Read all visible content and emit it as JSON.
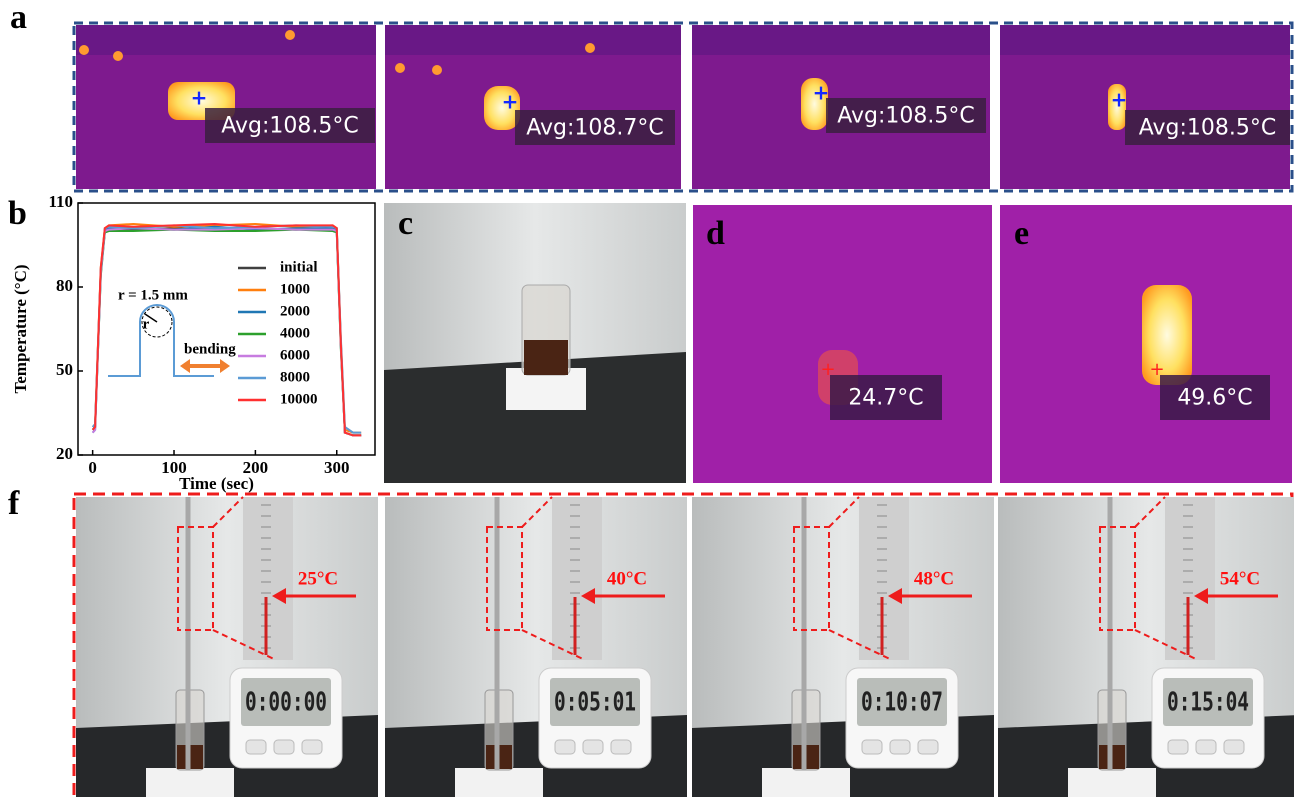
{
  "panel_labels": [
    "a",
    "b",
    "c",
    "d",
    "e",
    "f"
  ],
  "panel_a": {
    "readings": [
      "Avg:108.5°C",
      "Avg:108.7°C",
      "Avg:108.5°C",
      "Avg:108.5°C"
    ]
  },
  "chart_data": {
    "type": "line",
    "xlabel": "Time (sec)",
    "ylabel": "Temperature (°C)",
    "xlim": [
      -18,
      347
    ],
    "ylim": [
      20,
      110
    ],
    "xticks": [
      0,
      100,
      200,
      300
    ],
    "yticks": [
      20,
      50,
      80,
      110
    ],
    "annotations": [
      "r = 1.5 mm",
      "r",
      "bending"
    ],
    "x": [
      0,
      3,
      10,
      15,
      20,
      50,
      100,
      150,
      200,
      250,
      295,
      300,
      305,
      310,
      320,
      330
    ],
    "series": [
      {
        "name": "initial",
        "color": "#404040",
        "values": [
          29,
          30,
          86,
          100,
          101,
          100.5,
          101,
          100.5,
          101,
          100.5,
          101,
          100,
          60,
          28,
          27,
          27
        ]
      },
      {
        "name": "1000",
        "color": "#ff7f0e",
        "values": [
          30,
          31,
          87,
          101,
          102,
          102.5,
          101.5,
          102,
          102.5,
          101.5,
          102,
          101,
          61,
          29,
          28,
          28
        ]
      },
      {
        "name": "2000",
        "color": "#1f77b4",
        "values": [
          28,
          29,
          85,
          100,
          101,
          101,
          100.5,
          101.5,
          100.5,
          101,
          101,
          100,
          59,
          28,
          27,
          27
        ]
      },
      {
        "name": "4000",
        "color": "#2ca02c",
        "values": [
          29,
          30,
          84,
          99.5,
          100,
          100,
          100.5,
          100,
          100,
          100.5,
          100,
          99.5,
          58,
          28,
          27,
          27
        ]
      },
      {
        "name": "6000",
        "color": "#c77ce0",
        "values": [
          28,
          29,
          85,
          100,
          100.5,
          101,
          100.5,
          100.5,
          101,
          100.5,
          100.5,
          100,
          59,
          28,
          27,
          27
        ]
      },
      {
        "name": "8000",
        "color": "#5b9bd5",
        "values": [
          30,
          31,
          86,
          101,
          101.5,
          101,
          102,
          101,
          101.5,
          102,
          101.5,
          101,
          62,
          30,
          28,
          28
        ]
      },
      {
        "name": "10000",
        "color": "#ff3030",
        "values": [
          29,
          30,
          87,
          101,
          102,
          101.5,
          102,
          102.5,
          101.5,
          102,
          102,
          101,
          60,
          28,
          27,
          27
        ]
      }
    ]
  },
  "panel_d": {
    "reading": "24.7°C"
  },
  "panel_e": {
    "reading": "49.6°C"
  },
  "panel_f": {
    "temperatures": [
      "25°C",
      "40°C",
      "48°C",
      "54°C"
    ],
    "timers": [
      "0:00:00",
      "0:05:01",
      "0:10:07",
      "0:15:04"
    ]
  }
}
